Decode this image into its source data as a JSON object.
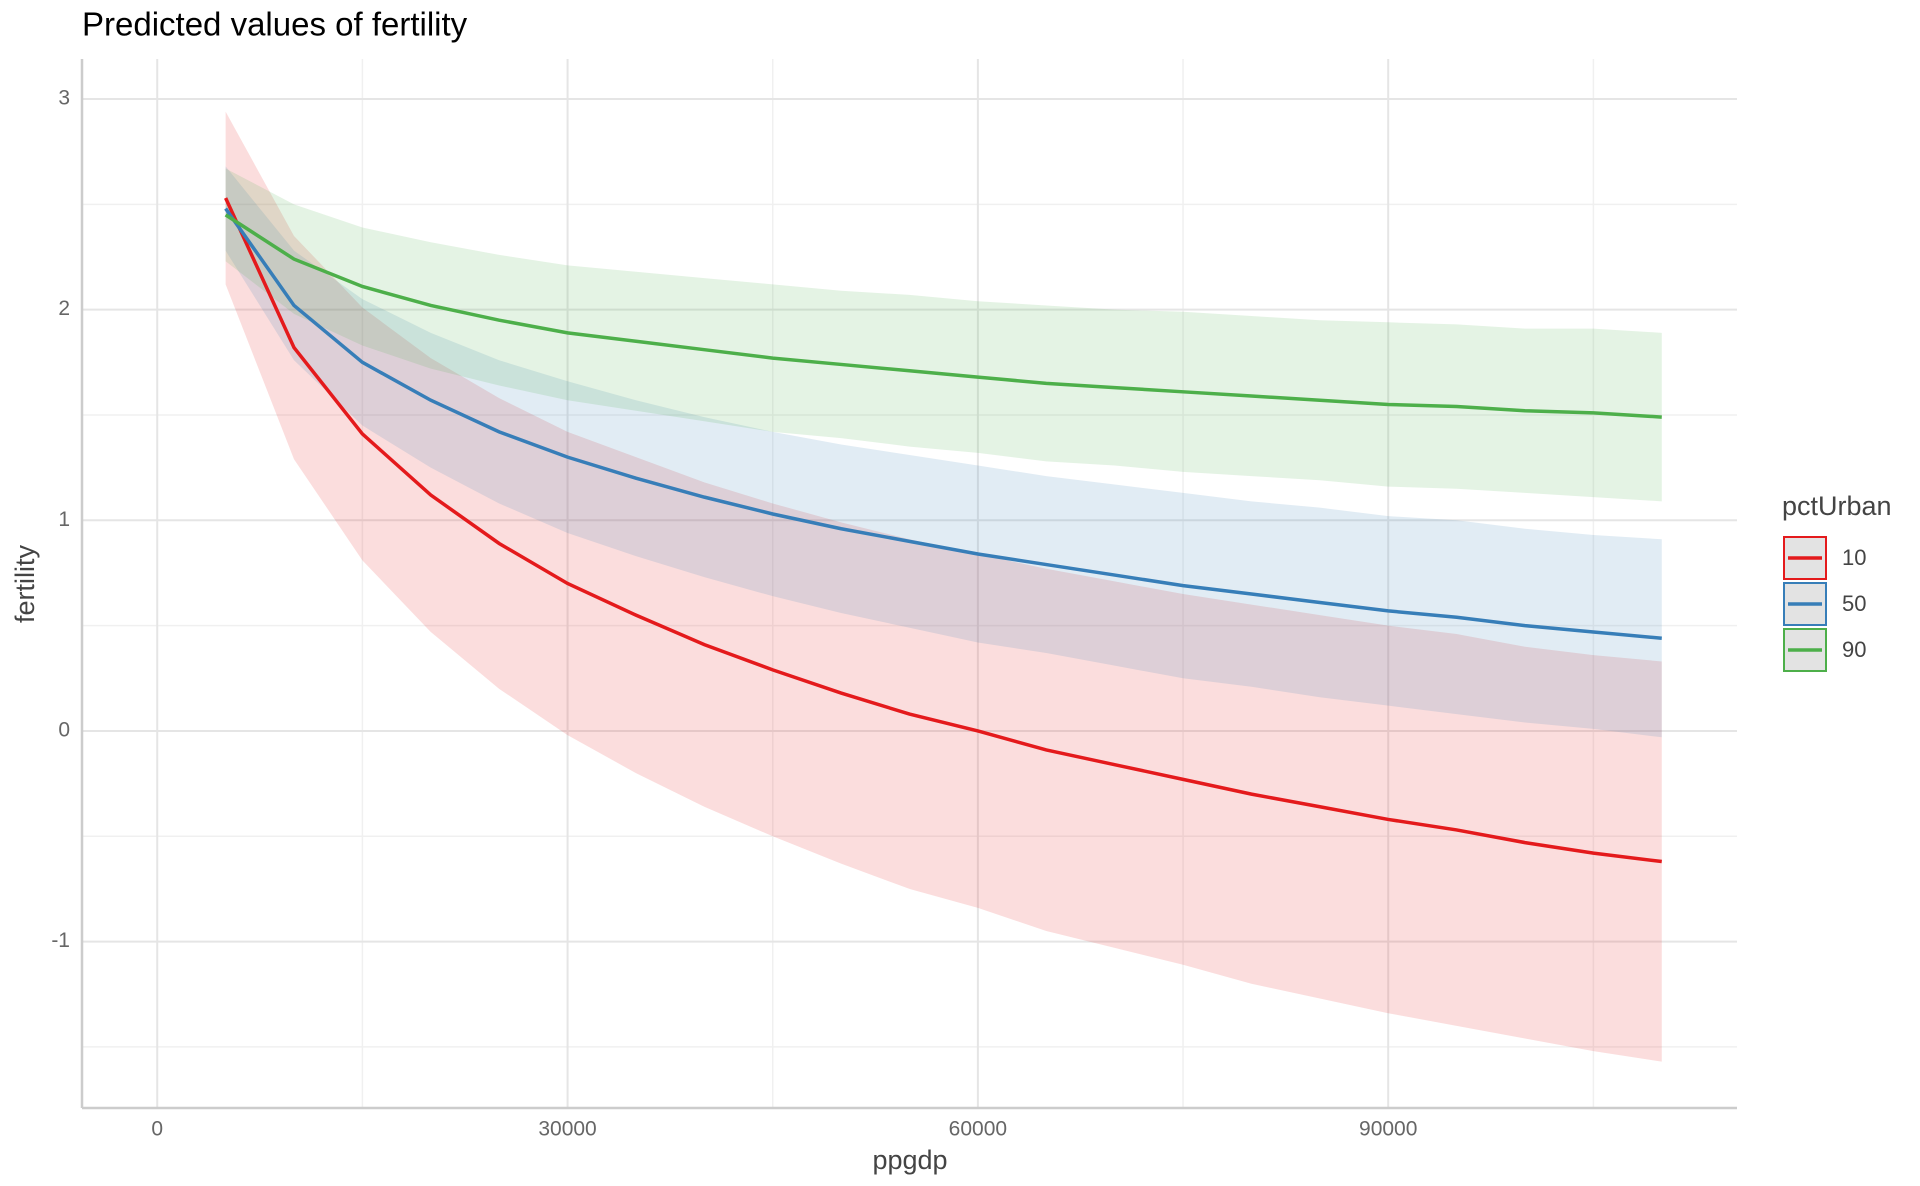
{
  "chart_data": {
    "type": "line",
    "title": "Predicted values of fertility",
    "x_label": "ppgdp",
    "y_label": "fertility",
    "legend_title": "pctUrban",
    "grid": true,
    "legend_position": "right",
    "x": [
      5000,
      10000,
      15000,
      20000,
      25000,
      30000,
      35000,
      40000,
      45000,
      50000,
      55000,
      60000,
      65000,
      70000,
      75000,
      80000,
      85000,
      90000,
      95000,
      100000,
      105000,
      110000
    ],
    "xlim": [
      -5500,
      115500
    ],
    "xticks": [
      0,
      30000,
      60000,
      90000
    ],
    "ylim": [
      -1.79,
      3.19
    ],
    "yticks": [
      -1,
      0,
      1,
      2,
      3
    ],
    "series": [
      {
        "name": "10",
        "color": "#e41a1c",
        "values": [
          2.53,
          1.82,
          1.41,
          1.12,
          0.89,
          0.7,
          0.55,
          0.41,
          0.29,
          0.18,
          0.08,
          0.0,
          -0.09,
          -0.16,
          -0.23,
          -0.3,
          -0.36,
          -0.42,
          -0.47,
          -0.53,
          -0.58,
          -0.62
        ],
        "lower": [
          2.12,
          1.29,
          0.81,
          0.47,
          0.2,
          -0.02,
          -0.2,
          -0.36,
          -0.5,
          -0.63,
          -0.75,
          -0.84,
          -0.95,
          -1.03,
          -1.11,
          -1.2,
          -1.27,
          -1.34,
          -1.4,
          -1.46,
          -1.52,
          -1.57
        ],
        "upper": [
          2.94,
          2.35,
          2.01,
          1.77,
          1.58,
          1.42,
          1.3,
          1.18,
          1.08,
          0.99,
          0.91,
          0.84,
          0.77,
          0.71,
          0.65,
          0.6,
          0.55,
          0.5,
          0.46,
          0.4,
          0.36,
          0.33
        ]
      },
      {
        "name": "50",
        "color": "#377eb8",
        "values": [
          2.48,
          2.02,
          1.75,
          1.57,
          1.42,
          1.3,
          1.2,
          1.11,
          1.03,
          0.96,
          0.9,
          0.84,
          0.79,
          0.74,
          0.69,
          0.65,
          0.61,
          0.57,
          0.54,
          0.5,
          0.47,
          0.44
        ],
        "lower": [
          2.28,
          1.76,
          1.45,
          1.25,
          1.08,
          0.94,
          0.83,
          0.73,
          0.64,
          0.56,
          0.49,
          0.42,
          0.37,
          0.31,
          0.25,
          0.21,
          0.16,
          0.12,
          0.08,
          0.04,
          0.01,
          -0.03
        ],
        "upper": [
          2.68,
          2.28,
          2.05,
          1.89,
          1.76,
          1.66,
          1.57,
          1.49,
          1.42,
          1.36,
          1.31,
          1.26,
          1.21,
          1.17,
          1.13,
          1.09,
          1.06,
          1.02,
          1.0,
          0.96,
          0.93,
          0.91
        ]
      },
      {
        "name": "90",
        "color": "#4daf4a",
        "values": [
          2.45,
          2.24,
          2.11,
          2.02,
          1.95,
          1.89,
          1.85,
          1.81,
          1.77,
          1.74,
          1.71,
          1.68,
          1.65,
          1.63,
          1.61,
          1.59,
          1.57,
          1.55,
          1.54,
          1.52,
          1.51,
          1.49
        ],
        "lower": [
          2.23,
          1.98,
          1.83,
          1.72,
          1.64,
          1.57,
          1.52,
          1.47,
          1.42,
          1.39,
          1.35,
          1.32,
          1.28,
          1.26,
          1.23,
          1.21,
          1.19,
          1.16,
          1.15,
          1.13,
          1.11,
          1.09
        ],
        "upper": [
          2.67,
          2.5,
          2.39,
          2.32,
          2.26,
          2.21,
          2.18,
          2.15,
          2.12,
          2.09,
          2.07,
          2.04,
          2.02,
          2.0,
          1.99,
          1.97,
          1.95,
          1.94,
          1.93,
          1.91,
          1.91,
          1.89
        ]
      }
    ]
  }
}
